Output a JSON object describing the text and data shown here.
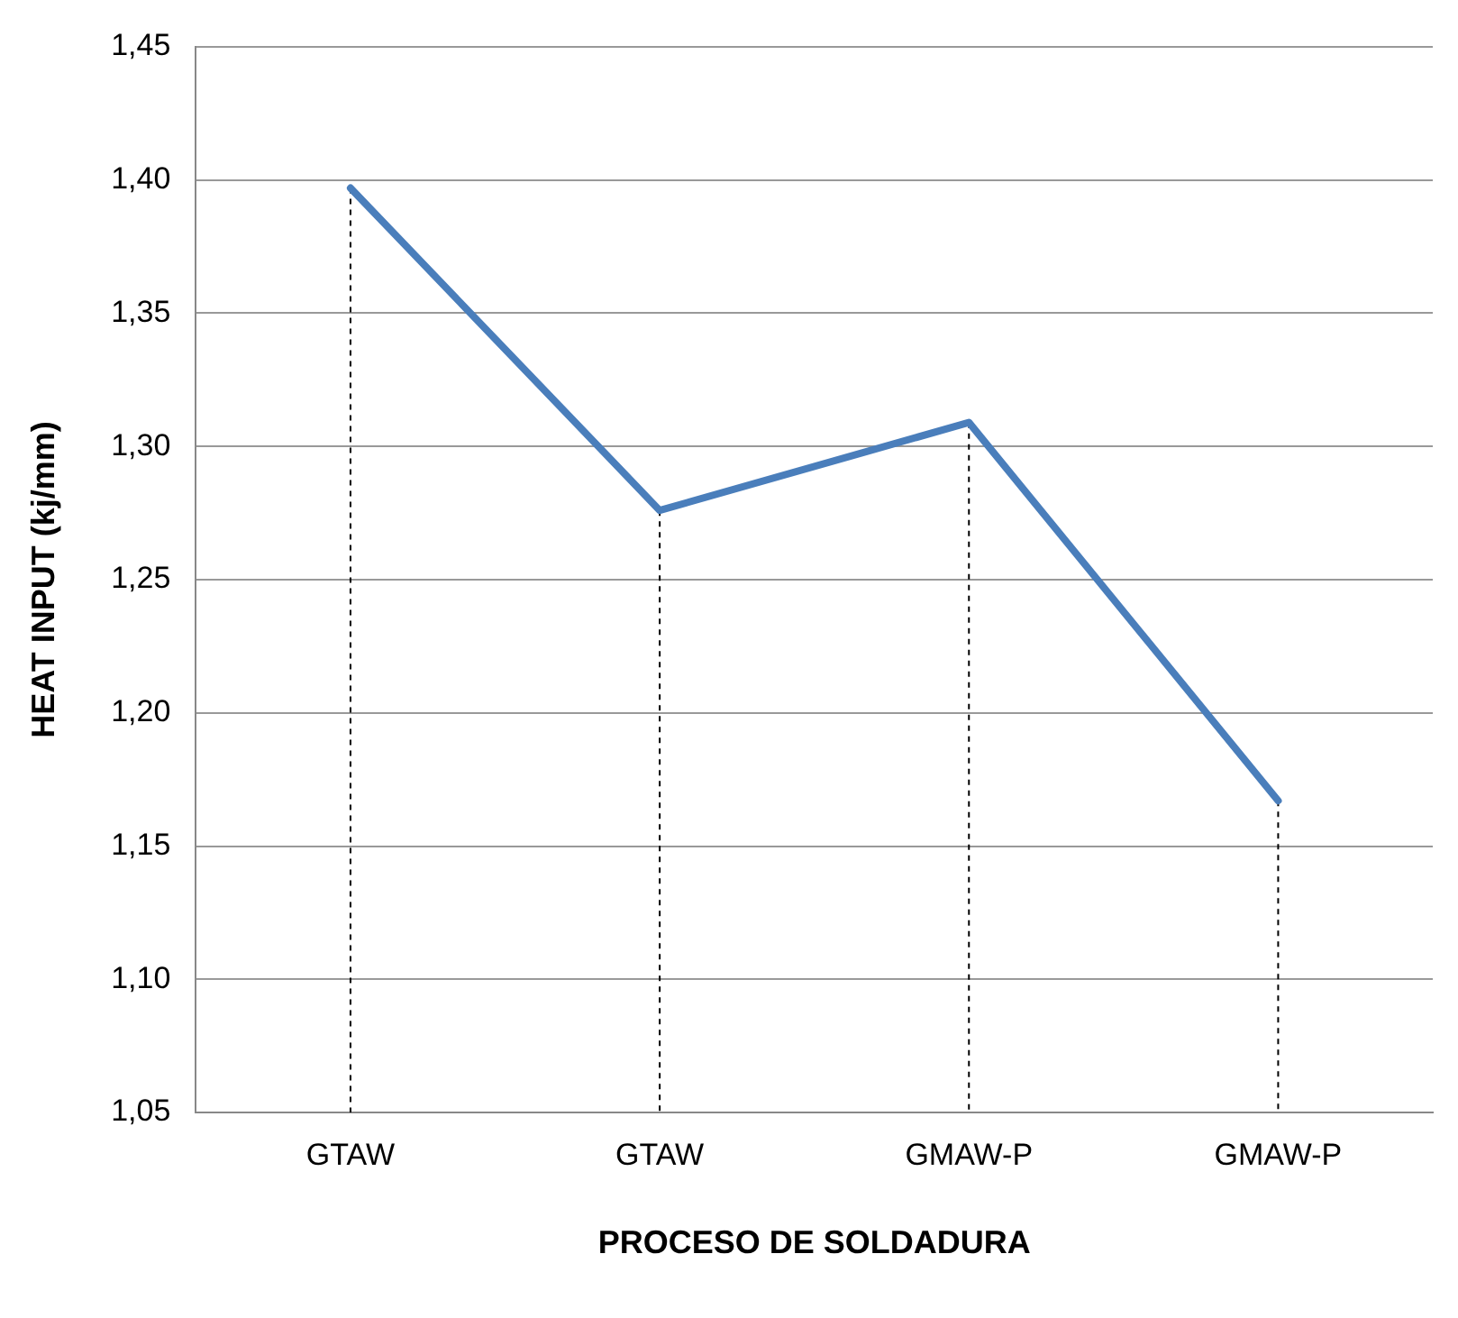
{
  "chart_data": {
    "type": "line",
    "xlabel": "PROCESO DE SOLDADURA",
    "ylabel": "HEAT INPUT (kj/mm)",
    "categories": [
      "GTAW",
      "GTAW",
      "GMAW-P",
      "GMAW-P"
    ],
    "series": [
      {
        "color": "#4a7ebb",
        "values": [
          1.397,
          1.276,
          1.309,
          1.167
        ],
        "errors": [
          [
            1.05,
            1.397
          ],
          [
            1.05,
            1.276
          ],
          [
            1.05,
            1.309
          ],
          [
            1.05,
            1.167
          ]
        ]
      }
    ],
    "ylim": [
      1.05,
      1.45
    ],
    "yticks": [
      {
        "value": 1.05,
        "label": "1,05"
      },
      {
        "value": 1.1,
        "label": "1,10"
      },
      {
        "value": 1.15,
        "label": "1,15"
      },
      {
        "value": 1.2,
        "label": "1,20"
      },
      {
        "value": 1.25,
        "label": "1,25"
      },
      {
        "value": 1.3,
        "label": "1,30"
      },
      {
        "value": 1.35,
        "label": "1,35"
      },
      {
        "value": 1.4,
        "label": "1,40"
      },
      {
        "value": 1.45,
        "label": "1,45"
      }
    ],
    "grid": "y",
    "legend": false,
    "marker": "none",
    "line_style": "solid"
  }
}
